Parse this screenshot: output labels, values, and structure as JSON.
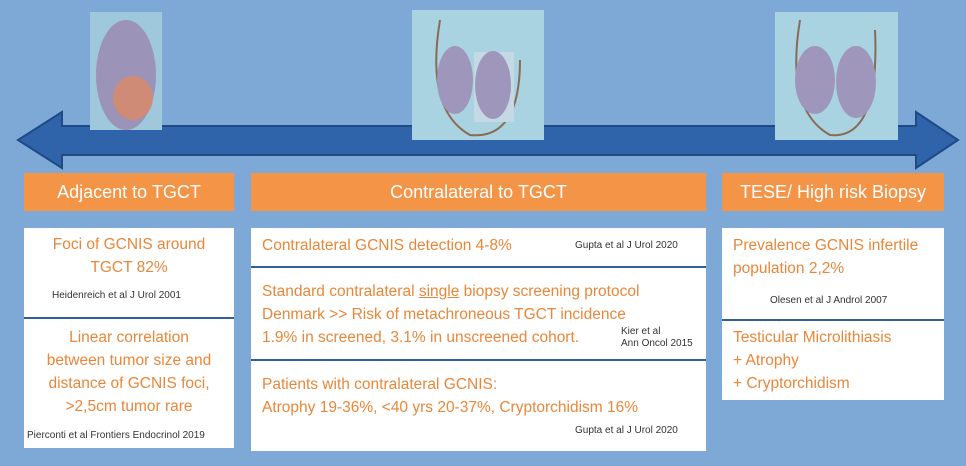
{
  "columns": [
    {
      "header": "Adjacent to TGCT",
      "boxes": [
        {
          "lines": [
            "Foci of GCNIS around",
            "TGCT 82%"
          ],
          "citation": [
            "Heidenreich et al J Urol 2001"
          ]
        },
        {
          "lines": [
            "Linear correlation",
            "between tumor size and",
            "distance of GCNIS foci,",
            ">2,5cm tumor rare"
          ],
          "citation": [
            "Pierconti et al Frontiers Endocrinol 2019"
          ]
        }
      ]
    },
    {
      "header": "Contralateral to TGCT",
      "boxes": [
        {
          "lines": [
            "Contralateral GCNIS detection 4-8%"
          ],
          "citation": [
            "Gupta et al J Urol 2020"
          ]
        },
        {
          "lines": [
            [
              "Standard contralateral ",
              "single",
              " biopsy screening protocol"
            ],
            "Denmark >>  Risk of metachroneous TGCT incidence",
            "1.9% in screened, 3.1% in unscreened cohort."
          ],
          "citation": [
            "Kier et al",
            "Ann Oncol 2015"
          ]
        },
        {
          "lines": [
            "Patients with contralateral GCNIS:",
            "Atrophy 19-36%, <40 yrs 20-37%, Cryptorchidism 16%"
          ],
          "citation": [
            "Gupta et al J Urol 2020"
          ]
        }
      ]
    },
    {
      "header": "TESE/ High risk Biopsy",
      "boxes": [
        {
          "lines": [
            "Prevalence GCNIS infertile",
            "population 2,2%"
          ],
          "citation": [
            "Olesen et al J Androl 2007"
          ]
        },
        {
          "lines": [
            "Testicular Microlithiasis",
            "+ Atrophy",
            "+ Cryptorchidism"
          ]
        }
      ]
    }
  ]
}
